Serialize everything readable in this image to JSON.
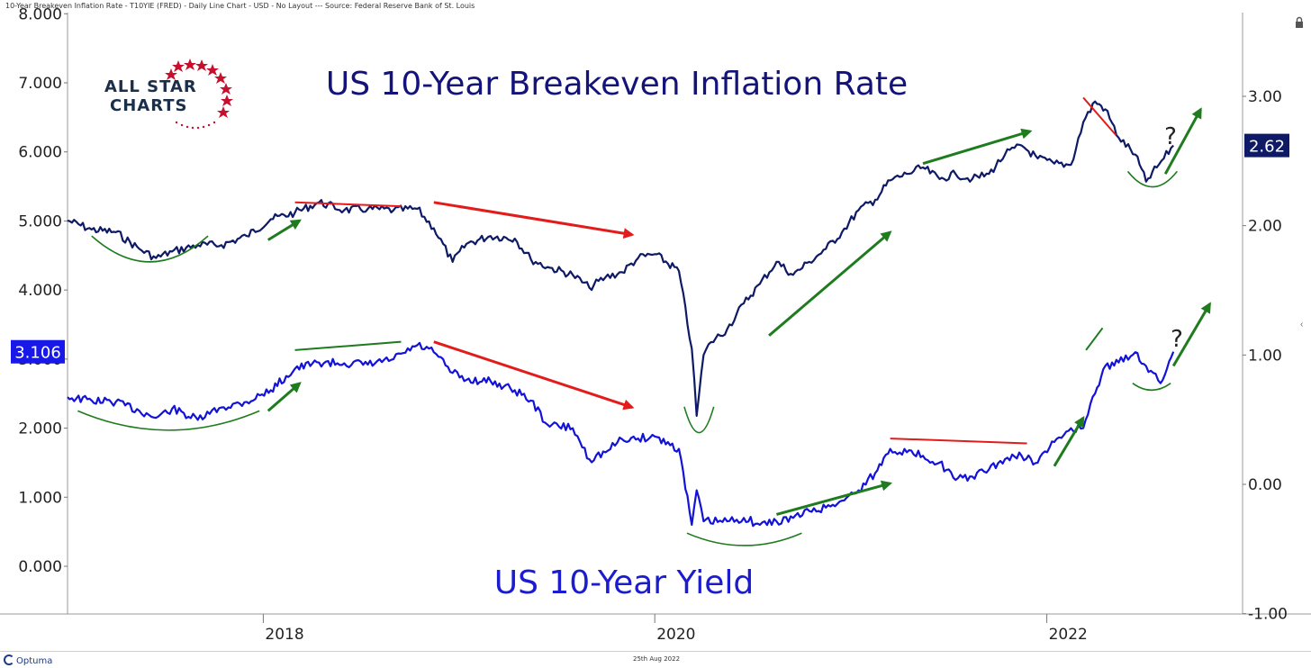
{
  "header": {
    "caption": "10-Year Breakeven Inflation Rate - T10YIE (FRED) - Daily Line Chart - USD - No Layout --- Source: Federal Reserve Bank of St. Louis"
  },
  "footer": {
    "brand": "Optuma",
    "date": "25th Aug 2022"
  },
  "logo": {
    "line1": "ALL STAR",
    "line2": "CHARTS"
  },
  "colors": {
    "breakeven": "#0f1a66",
    "yield": "#1313d8",
    "up_arrow": "#1e7b1e",
    "down_arrow": "#e31b1b",
    "breakeven_badge": "#0f1a66",
    "yield_badge": "#1818e8",
    "logo_star": "#c8102e"
  },
  "chart_data": {
    "type": "line",
    "title_top": "US 10-Year Breakeven Inflation Rate",
    "title_bottom": "US 10-Year Yield",
    "x_tick_labels": [
      "2018",
      "2020",
      "2022"
    ],
    "x_range": [
      "2017-01-01",
      "2023-01-01"
    ],
    "left_axis": {
      "ticks": [
        "8.000",
        "7.000",
        "6.000",
        "5.000",
        "4.000",
        "3.000",
        "2.000",
        "1.000",
        "0.000"
      ],
      "ylim": [
        -0.7,
        8.0
      ]
    },
    "right_axis": {
      "ticks": [
        "3.00",
        "2.00",
        "1.00",
        "0.00",
        "-1.00"
      ],
      "ylim": [
        -1.0,
        3.6
      ]
    },
    "last_value_labels": {
      "yield": "3.106",
      "breakeven": "2.62"
    },
    "question_marks": [
      "?",
      "?"
    ],
    "series": [
      {
        "name": "US 10-Year Breakeven Inflation Rate",
        "axis": "right",
        "x": [
          "2017-01-01",
          "2017-02-15",
          "2017-04-01",
          "2017-05-15",
          "2017-06-15",
          "2017-07-15",
          "2017-09-01",
          "2017-10-15",
          "2017-12-01",
          "2018-01-15",
          "2018-03-01",
          "2018-04-15",
          "2018-06-01",
          "2018-07-15",
          "2018-09-01",
          "2018-10-15",
          "2018-11-15",
          "2018-12-20",
          "2019-01-15",
          "2019-03-01",
          "2019-04-15",
          "2019-05-15",
          "2019-06-15",
          "2019-08-01",
          "2019-09-01",
          "2019-10-01",
          "2019-11-01",
          "2019-12-01",
          "2020-01-01",
          "2020-02-15",
          "2020-03-10",
          "2020-03-19",
          "2020-04-01",
          "2020-04-15",
          "2020-05-15",
          "2020-06-15",
          "2020-07-15",
          "2020-08-15",
          "2020-09-15",
          "2020-10-15",
          "2020-11-15",
          "2020-12-15",
          "2021-01-15",
          "2021-02-15",
          "2021-03-15",
          "2021-04-15",
          "2021-05-15",
          "2021-06-15",
          "2021-07-15",
          "2021-08-15",
          "2021-09-15",
          "2021-10-15",
          "2021-11-15",
          "2021-12-15",
          "2022-01-15",
          "2022-02-15",
          "2022-03-10",
          "2022-04-01",
          "2022-04-20",
          "2022-05-15",
          "2022-06-15",
          "2022-07-05",
          "2022-07-25",
          "2022-08-25"
        ],
        "values": [
          2.04,
          1.97,
          1.95,
          1.82,
          1.75,
          1.8,
          1.85,
          1.85,
          1.92,
          2.05,
          2.1,
          2.18,
          2.12,
          2.13,
          2.12,
          2.13,
          1.98,
          1.72,
          1.86,
          1.92,
          1.9,
          1.74,
          1.68,
          1.62,
          1.52,
          1.6,
          1.64,
          1.75,
          1.78,
          1.65,
          1.05,
          0.53,
          1.0,
          1.1,
          1.2,
          1.4,
          1.55,
          1.72,
          1.62,
          1.72,
          1.82,
          1.95,
          2.12,
          2.2,
          2.35,
          2.4,
          2.45,
          2.36,
          2.4,
          2.36,
          2.4,
          2.55,
          2.62,
          2.52,
          2.48,
          2.47,
          2.8,
          2.96,
          2.9,
          2.68,
          2.55,
          2.34,
          2.45,
          2.62
        ]
      },
      {
        "name": "US 10-Year Yield",
        "axis": "left",
        "x": [
          "2017-01-01",
          "2017-02-15",
          "2017-04-01",
          "2017-05-15",
          "2017-06-15",
          "2017-07-15",
          "2017-09-01",
          "2017-10-15",
          "2017-12-01",
          "2018-01-15",
          "2018-03-01",
          "2018-04-15",
          "2018-06-01",
          "2018-07-15",
          "2018-09-01",
          "2018-10-15",
          "2018-11-15",
          "2018-12-20",
          "2019-01-15",
          "2019-03-01",
          "2019-04-15",
          "2019-05-15",
          "2019-06-15",
          "2019-08-01",
          "2019-09-01",
          "2019-10-01",
          "2019-11-01",
          "2019-12-01",
          "2020-01-01",
          "2020-02-15",
          "2020-03-10",
          "2020-03-19",
          "2020-04-01",
          "2020-05-15",
          "2020-06-15",
          "2020-07-15",
          "2020-08-15",
          "2020-09-15",
          "2020-10-15",
          "2020-11-15",
          "2020-12-15",
          "2021-01-15",
          "2021-02-15",
          "2021-03-15",
          "2021-04-15",
          "2021-05-15",
          "2021-06-15",
          "2021-07-15",
          "2021-08-15",
          "2021-09-15",
          "2021-10-15",
          "2021-11-15",
          "2021-12-15",
          "2022-01-15",
          "2022-02-15",
          "2022-03-10",
          "2022-04-01",
          "2022-04-20",
          "2022-05-15",
          "2022-06-15",
          "2022-07-05",
          "2022-08-01",
          "2022-08-25"
        ],
        "values": [
          2.45,
          2.4,
          2.38,
          2.25,
          2.15,
          2.28,
          2.12,
          2.3,
          2.38,
          2.55,
          2.86,
          2.95,
          2.94,
          2.92,
          3.0,
          3.2,
          3.1,
          2.8,
          2.7,
          2.68,
          2.55,
          2.4,
          2.05,
          2.0,
          1.55,
          1.65,
          1.84,
          1.85,
          1.88,
          1.7,
          0.6,
          1.1,
          0.65,
          0.65,
          0.7,
          0.6,
          0.65,
          0.7,
          0.8,
          0.85,
          0.95,
          1.1,
          1.35,
          1.7,
          1.65,
          1.6,
          1.5,
          1.25,
          1.3,
          1.4,
          1.55,
          1.6,
          1.5,
          1.8,
          2.0,
          2.0,
          2.5,
          2.9,
          2.95,
          3.1,
          2.9,
          2.65,
          3.106
        ]
      }
    ],
    "annotations": {
      "breakeven_down": [
        [
          "2018-03-01",
          2.18,
          "2018-09-15",
          2.15
        ],
        [
          "2018-11-15",
          2.18,
          "2019-11-20",
          1.93
        ],
        [
          "2022-03-10",
          2.99,
          "2022-05-10",
          2.7
        ]
      ],
      "breakeven_up": [
        [
          "2018-01-10",
          1.89,
          "2018-03-10",
          2.04
        ],
        [
          "2020-08-01",
          1.15,
          "2021-03-15",
          1.95
        ],
        [
          "2021-05-15",
          2.48,
          "2021-12-01",
          2.73
        ],
        [
          "2022-08-10",
          2.4,
          "2022-10-15",
          2.9
        ]
      ],
      "yield_up": [
        [
          "2018-01-10",
          2.25,
          "2018-03-10",
          2.65
        ],
        [
          "2018-03-01",
          3.13,
          "2018-09-15",
          3.25
        ],
        [
          "2020-08-15",
          0.75,
          "2021-03-15",
          1.2
        ],
        [
          "2022-01-15",
          1.45,
          "2022-03-10",
          2.15
        ],
        [
          "2022-03-15",
          3.13,
          "2022-04-15",
          3.45
        ],
        [
          "2022-08-25",
          2.9,
          "2022-11-01",
          3.8
        ]
      ],
      "yield_down": [
        [
          "2018-11-15",
          3.25,
          "2019-11-20",
          2.3
        ],
        [
          "2021-03-15",
          1.85,
          "2021-11-25",
          1.78
        ]
      ],
      "breakeven_arcs": [
        [
          "2017-02-15",
          "2017-09-20",
          1.92,
          1.72
        ],
        [
          "2020-02-25",
          "2020-04-20",
          0.6,
          0.4
        ],
        [
          "2022-06-01",
          "2022-09-01",
          2.42,
          2.3
        ]
      ],
      "yield_arcs": [
        [
          "2017-01-20",
          "2017-12-25",
          2.25,
          1.97
        ],
        [
          "2020-03-01",
          "2020-10-01",
          0.48,
          0.3
        ],
        [
          "2022-06-10",
          "2022-08-20",
          2.65,
          2.55
        ]
      ]
    }
  }
}
